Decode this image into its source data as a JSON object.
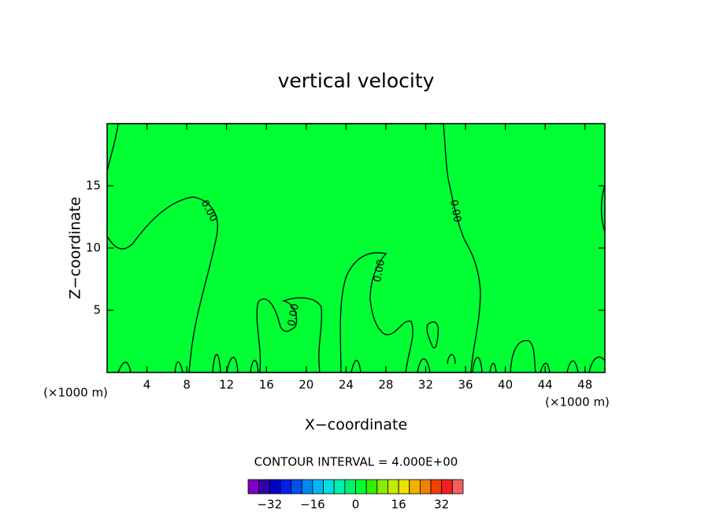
{
  "chart_data": {
    "type": "contour",
    "title": "vertical velocity",
    "xlabel": "X−coordinate",
    "ylabel": "Z−coordinate",
    "x_unit_left": "(×1000 m)",
    "x_unit_right": "(×1000 m)",
    "xlim": [
      0,
      50
    ],
    "ylim": [
      0,
      20
    ],
    "xticks": [
      4,
      8,
      12,
      16,
      20,
      24,
      28,
      32,
      36,
      40,
      44,
      48
    ],
    "yticks": [
      5,
      10,
      15
    ],
    "contour_labels": [
      "0.00",
      "0.00",
      "0.00",
      "0.00"
    ],
    "fill_colors": [
      "#00ff33",
      "#33ee00",
      "#88ee00"
    ],
    "contour_interval": "CONTOUR INTERVAL = 4.000E+00",
    "colorbar": {
      "clim": [
        -40,
        40
      ],
      "colors": [
        "#8000c0",
        "#3000a8",
        "#0000c8",
        "#0020e8",
        "#0050f0",
        "#0088f0",
        "#00b8f0",
        "#00e0e0",
        "#00f0b0",
        "#00f070",
        "#00ff33",
        "#33ee00",
        "#88ee00",
        "#c0ee00",
        "#eee000",
        "#f0b000",
        "#f08000",
        "#f04000",
        "#f02020",
        "#f06060"
      ],
      "ticks": [
        {
          "value": -32,
          "label": "−32"
        },
        {
          "value": -16,
          "label": "−16"
        },
        0,
        16,
        32
      ]
    }
  }
}
